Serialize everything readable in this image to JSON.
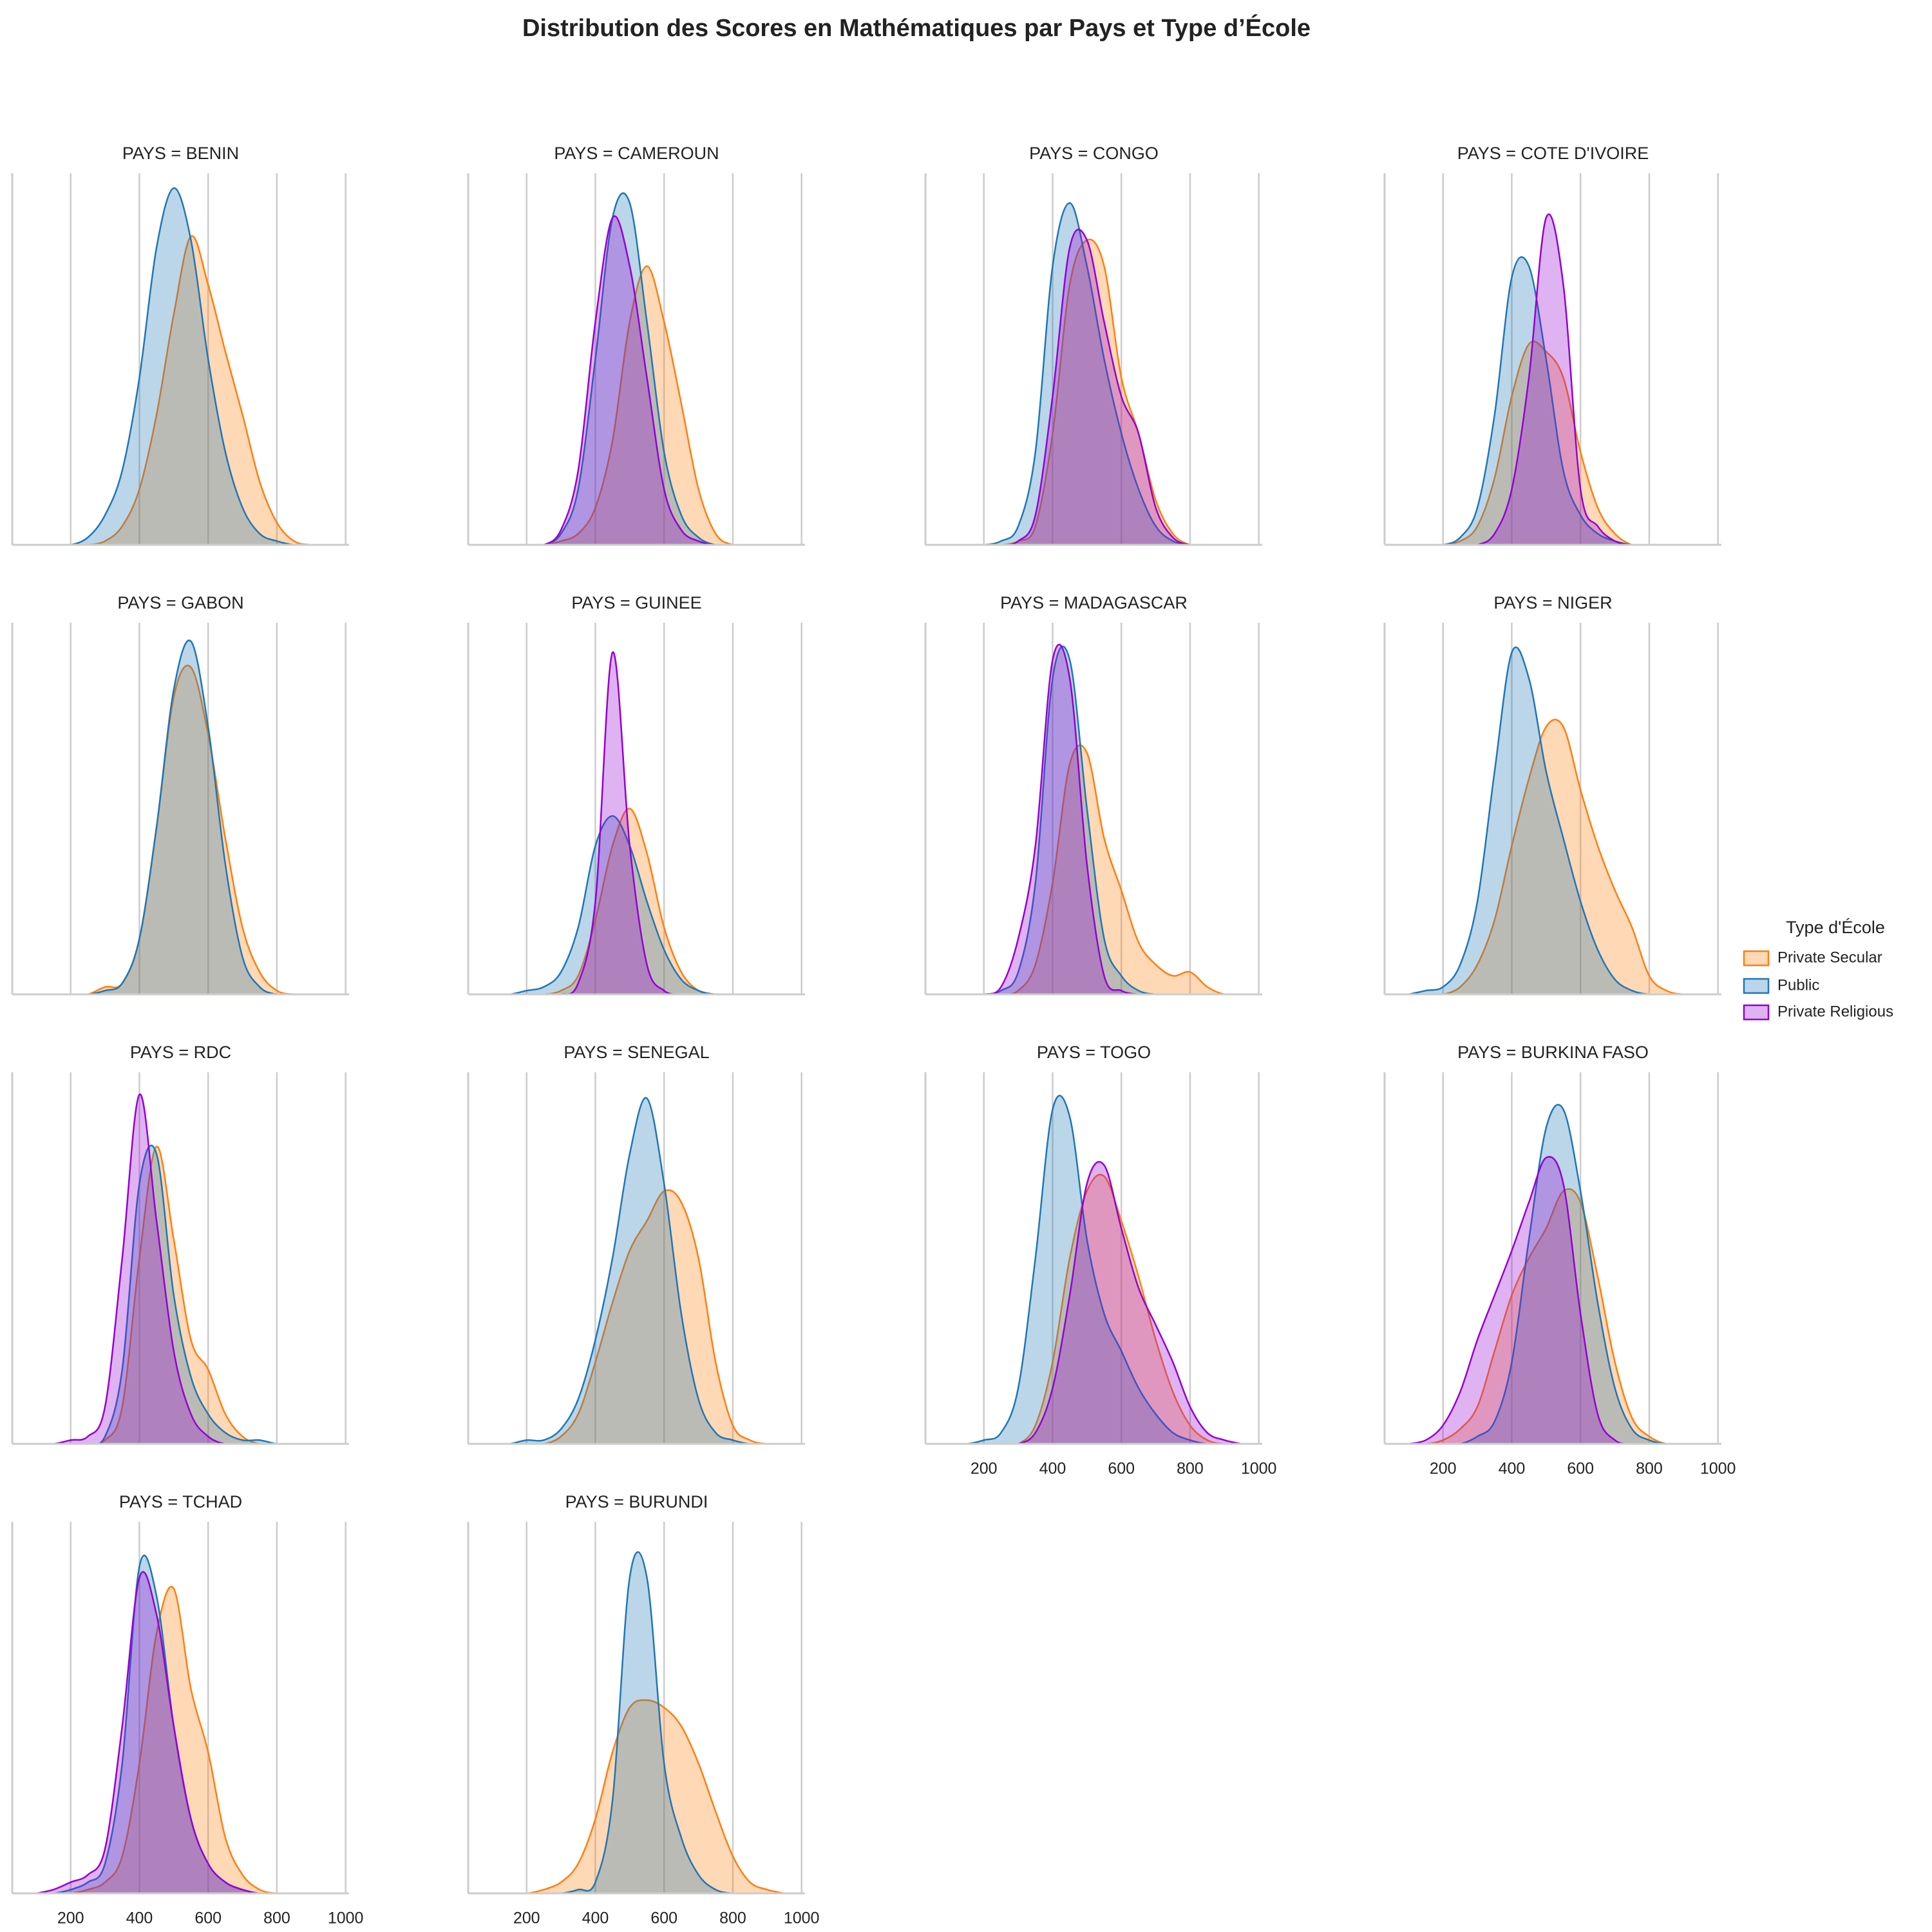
{
  "chart_data": {
    "type": "kde",
    "title": "Distribution des Scores en Mathématiques par Pays et Type d’École",
    "legend_title": "Type d'École",
    "legend_position": "right",
    "grid": true,
    "x": [
      100,
      150,
      200,
      250,
      300,
      350,
      400,
      450,
      500,
      550,
      600,
      650,
      700,
      750,
      800,
      850,
      900,
      950
    ],
    "xlim": [
      30,
      1010
    ],
    "xticks": [
      200,
      400,
      600,
      800,
      1000
    ],
    "ylim": [
      0,
      100
    ],
    "series": [
      {
        "name": "Private Secular",
        "color": "#ff7f0e"
      },
      {
        "name": "Public",
        "color": "#1f77b4"
      },
      {
        "name": "Private Religious",
        "color": "#9400d3"
      }
    ],
    "facets": [
      {
        "title": "PAYS = BENIN",
        "values": [
          [
            0,
            0,
            0,
            0,
            1,
            5,
            15,
            35,
            62,
            83,
            70,
            52,
            35,
            17,
            6,
            1,
            0,
            0
          ],
          [
            0,
            0,
            0,
            2,
            8,
            20,
            45,
            80,
            96,
            82,
            50,
            25,
            10,
            3,
            1,
            0,
            0,
            0
          ],
          null
        ]
      },
      {
        "title": "PAYS = CAMEROUN",
        "values": [
          [
            0,
            0,
            0,
            0,
            1,
            3,
            10,
            28,
            60,
            75,
            60,
            38,
            15,
            3,
            0,
            0,
            0,
            0
          ],
          [
            0,
            0,
            0,
            0,
            3,
            15,
            50,
            88,
            92,
            60,
            25,
            8,
            2,
            0,
            0,
            0,
            0,
            0
          ],
          [
            0,
            0,
            0,
            0,
            4,
            20,
            60,
            88,
            75,
            45,
            15,
            4,
            1,
            0,
            0,
            0,
            0,
            0
          ]
        ]
      },
      {
        "title": "PAYS = CONGO",
        "values": [
          [
            0,
            0,
            0,
            0,
            1,
            5,
            30,
            70,
            82,
            75,
            45,
            30,
            12,
            3,
            0,
            0,
            0,
            0
          ],
          [
            0,
            0,
            0,
            1,
            5,
            25,
            75,
            92,
            75,
            50,
            30,
            15,
            5,
            1,
            0,
            0,
            0,
            0
          ],
          [
            0,
            0,
            0,
            0,
            1,
            8,
            40,
            80,
            82,
            60,
            40,
            30,
            10,
            2,
            0,
            0,
            0,
            0
          ]
        ]
      },
      {
        "title": "PAYS = COTE D'IVOIRE",
        "values": [
          [
            0,
            0,
            0,
            1,
            5,
            18,
            40,
            54,
            52,
            45,
            25,
            10,
            3,
            0,
            0,
            0,
            0,
            0
          ],
          [
            0,
            0,
            0,
            2,
            10,
            35,
            72,
            75,
            50,
            20,
            8,
            3,
            1,
            0,
            0,
            0,
            0,
            0
          ],
          [
            0,
            0,
            0,
            0,
            0,
            3,
            15,
            45,
            88,
            70,
            15,
            5,
            1,
            0,
            0,
            0,
            0,
            0
          ]
        ]
      },
      {
        "title": "PAYS = GABON",
        "values": [
          [
            0,
            0,
            0,
            0,
            2,
            3,
            15,
            45,
            80,
            88,
            70,
            42,
            18,
            6,
            1,
            0,
            0,
            0
          ],
          [
            0,
            0,
            0,
            0,
            1,
            3,
            15,
            45,
            82,
            95,
            72,
            35,
            10,
            2,
            0,
            0,
            0,
            0
          ],
          null
        ]
      },
      {
        "title": "PAYS = GUINEE",
        "values": [
          [
            0,
            0,
            0,
            0,
            1,
            5,
            20,
            40,
            50,
            38,
            18,
            6,
            1,
            0,
            0,
            0,
            0,
            0
          ],
          [
            0,
            0,
            1,
            2,
            6,
            18,
            40,
            48,
            40,
            25,
            12,
            4,
            1,
            0,
            0,
            0,
            0,
            0
          ],
          [
            0,
            0,
            0,
            0,
            0,
            3,
            25,
            92,
            40,
            8,
            1,
            0,
            0,
            0,
            0,
            0,
            0,
            0
          ]
        ]
      },
      {
        "title": "PAYS = MADAGASCAR",
        "values": [
          [
            0,
            0,
            0,
            0,
            1,
            8,
            30,
            62,
            65,
            42,
            28,
            14,
            8,
            5,
            6,
            2,
            0,
            0
          ],
          [
            0,
            0,
            0,
            1,
            6,
            30,
            85,
            90,
            50,
            15,
            5,
            1,
            0,
            0,
            0,
            0,
            0,
            0
          ],
          [
            0,
            0,
            0,
            2,
            15,
            40,
            90,
            85,
            35,
            5,
            1,
            0,
            0,
            0,
            0,
            0,
            0,
            0
          ]
        ]
      },
      {
        "title": "PAYS = NIGER",
        "values": [
          [
            0,
            0,
            0,
            2,
            8,
            20,
            40,
            58,
            72,
            72,
            55,
            40,
            28,
            18,
            5,
            1,
            0,
            0
          ],
          [
            0,
            1,
            2,
            8,
            25,
            60,
            92,
            85,
            60,
            42,
            25,
            12,
            4,
            1,
            0,
            0,
            0,
            0
          ],
          null
        ]
      },
      {
        "title": "PAYS = RDC",
        "values": [
          [
            0,
            0,
            0,
            0,
            1,
            10,
            50,
            80,
            55,
            28,
            20,
            8,
            2,
            0,
            0,
            0,
            0,
            0
          ],
          [
            0,
            0,
            0,
            0,
            2,
            20,
            70,
            78,
            40,
            18,
            8,
            3,
            1,
            1,
            0,
            0,
            0,
            0
          ],
          [
            0,
            0,
            1,
            2,
            10,
            50,
            94,
            60,
            25,
            8,
            2,
            0,
            0,
            0,
            0,
            0,
            0,
            0
          ]
        ]
      },
      {
        "title": "PAYS = SENEGAL",
        "values": [
          [
            0,
            0,
            0,
            0,
            2,
            8,
            22,
            38,
            52,
            60,
            68,
            65,
            50,
            22,
            5,
            1,
            0,
            0
          ],
          [
            0,
            0,
            1,
            1,
            4,
            12,
            28,
            50,
            78,
            93,
            70,
            35,
            12,
            3,
            1,
            0,
            0,
            0
          ],
          null
        ]
      },
      {
        "title": "PAYS = TOGO",
        "values": [
          [
            0,
            0,
            0,
            0,
            0,
            5,
            22,
            50,
            68,
            72,
            60,
            45,
            28,
            14,
            5,
            1,
            0,
            0
          ],
          [
            0,
            0,
            1,
            3,
            15,
            50,
            90,
            88,
            55,
            35,
            25,
            15,
            8,
            3,
            1,
            0,
            0,
            0
          ],
          [
            0,
            0,
            0,
            0,
            0,
            3,
            15,
            40,
            70,
            75,
            58,
            42,
            32,
            22,
            10,
            3,
            1,
            0
          ]
        ]
      },
      {
        "title": "PAYS = BURKINA FASO",
        "values": [
          [
            0,
            0,
            1,
            4,
            10,
            25,
            40,
            50,
            58,
            68,
            65,
            45,
            22,
            7,
            2,
            0,
            0,
            0
          ],
          [
            0,
            0,
            0,
            0,
            2,
            6,
            22,
            55,
            85,
            90,
            68,
            38,
            15,
            4,
            1,
            0,
            0,
            0
          ],
          [
            0,
            1,
            5,
            14,
            28,
            40,
            52,
            65,
            77,
            70,
            35,
            8,
            1,
            0,
            0,
            0,
            0,
            0
          ]
        ]
      },
      {
        "title": "PAYS = TCHAD",
        "values": [
          [
            0,
            0,
            0,
            1,
            3,
            10,
            35,
            70,
            82,
            55,
            38,
            15,
            5,
            1,
            0,
            0,
            0,
            0
          ],
          [
            0,
            0,
            1,
            3,
            8,
            35,
            88,
            80,
            45,
            20,
            8,
            3,
            1,
            0,
            0,
            0,
            0,
            0
          ],
          [
            0,
            1,
            3,
            5,
            12,
            45,
            85,
            75,
            45,
            20,
            8,
            3,
            1,
            0,
            0,
            0,
            0,
            0
          ]
        ]
      },
      {
        "title": "PAYS = BURUNDI",
        "values": [
          [
            0,
            0,
            0,
            1,
            3,
            8,
            20,
            38,
            50,
            52,
            50,
            45,
            35,
            22,
            10,
            3,
            1,
            0
          ],
          [
            0,
            0,
            0,
            0,
            0,
            1,
            3,
            25,
            85,
            85,
            35,
            15,
            5,
            1,
            0,
            0,
            0,
            0
          ],
          null
        ]
      }
    ]
  }
}
